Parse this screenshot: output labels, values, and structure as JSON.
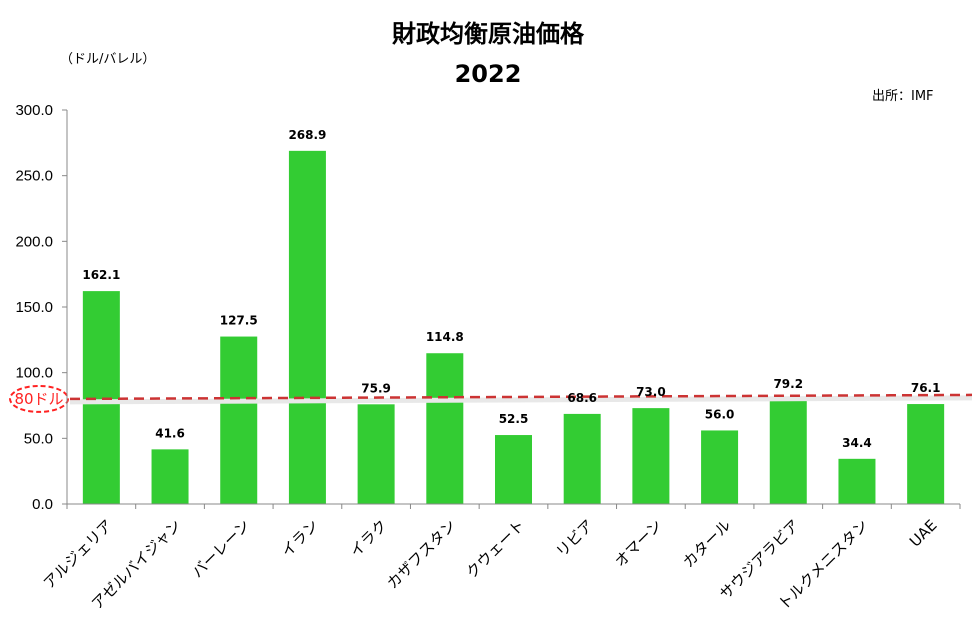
{
  "chart_data": {
    "type": "bar",
    "title": "財政均衡原油価格",
    "subtitle": "2022",
    "ylabel": "（ドル/バレル）",
    "source": "出所：IMF",
    "ylim": [
      0,
      300
    ],
    "yticks": [
      "0.0",
      "50.0",
      "100.0",
      "150.0",
      "200.0",
      "250.0",
      "300.0"
    ],
    "categories": [
      "アルジェリア",
      "アゼルバイジャン",
      "バーレーン",
      "イラン",
      "イラク",
      "カザフスタン",
      "クウェート",
      "リビア",
      "オマーン",
      "カタール",
      "サウジアラビア",
      "トルクメニスタン",
      "UAE"
    ],
    "values": [
      162.1,
      41.6,
      127.5,
      268.9,
      75.9,
      114.8,
      52.5,
      68.6,
      73.0,
      56.0,
      79.2,
      34.4,
      76.1
    ],
    "value_labels": [
      "162.1",
      "41.6",
      "127.5",
      "268.9",
      "75.9",
      "114.8",
      "52.5",
      "68.6",
      "73.0",
      "56.0",
      "79.2",
      "34.4",
      "76.1"
    ],
    "bar_color": "#33cc33",
    "reference_line": {
      "label": "80ドル",
      "value": 80,
      "color": "#cc3333"
    },
    "grid": false,
    "legend": "none"
  }
}
